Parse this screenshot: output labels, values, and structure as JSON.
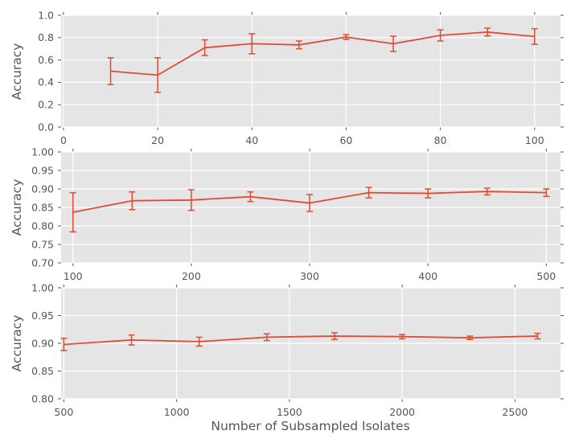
{
  "style": {
    "accent": "#E24A33",
    "plot_bg": "#E5E5E5",
    "grid_color": "#FFFFFF",
    "text_color": "#555555",
    "tick_color": "#555555",
    "fig_bg": "#FFFFFF"
  },
  "chart_data": [
    {
      "type": "line",
      "title": "",
      "ylabel": "Accuracy",
      "xlabel": "",
      "grid": true,
      "legend": "none",
      "xlim": [
        -0.5,
        105.5
      ],
      "ylim": [
        0.0,
        1.0
      ],
      "xticks": [
        0,
        20,
        40,
        60,
        80,
        100
      ],
      "xtick_labels": [
        "0",
        "20",
        "40",
        "60",
        "80",
        "100"
      ],
      "yticks": [
        0.0,
        0.2,
        0.4,
        0.6,
        0.8,
        1.0
      ],
      "ytick_labels": [
        "0.0",
        "0.2",
        "0.4",
        "0.6",
        "0.8",
        "1.0"
      ],
      "series": [
        {
          "name": "accuracy-vs-isolates-10-100",
          "x": [
            10,
            20,
            30,
            40,
            50,
            60,
            70,
            80,
            90,
            100
          ],
          "y": [
            0.5,
            0.465,
            0.71,
            0.745,
            0.735,
            0.805,
            0.745,
            0.82,
            0.85,
            0.81
          ],
          "yerr": [
            0.12,
            0.155,
            0.07,
            0.09,
            0.035,
            0.022,
            0.068,
            0.05,
            0.035,
            0.07
          ]
        }
      ]
    },
    {
      "type": "line",
      "title": "",
      "ylabel": "Accuracy",
      "xlabel": "",
      "grid": true,
      "legend": "none",
      "xlim": [
        90,
        512
      ],
      "ylim": [
        0.7,
        1.0
      ],
      "xticks": [
        100,
        200,
        300,
        400,
        500
      ],
      "xtick_labels": [
        "100",
        "200",
        "300",
        "400",
        "500"
      ],
      "yticks": [
        0.7,
        0.75,
        0.8,
        0.85,
        0.9,
        0.95,
        1.0
      ],
      "ytick_labels": [
        "0.70",
        "0.75",
        "0.80",
        "0.85",
        "0.90",
        "0.95",
        "1.00"
      ],
      "series": [
        {
          "name": "accuracy-vs-isolates-100-500",
          "x": [
            100,
            150,
            200,
            250,
            300,
            350,
            400,
            450,
            500
          ],
          "y": [
            0.837,
            0.868,
            0.87,
            0.879,
            0.862,
            0.89,
            0.888,
            0.893,
            0.89
          ],
          "yerr": [
            0.053,
            0.024,
            0.028,
            0.013,
            0.023,
            0.014,
            0.012,
            0.009,
            0.01
          ]
        }
      ]
    },
    {
      "type": "line",
      "title": "",
      "ylabel": "Accuracy",
      "xlabel": "Number of Subsampled Isolates",
      "grid": true,
      "legend": "none",
      "xlim": [
        488,
        2702
      ],
      "ylim": [
        0.8,
        1.0
      ],
      "xticks": [
        500,
        1000,
        1500,
        2000,
        2500
      ],
      "xtick_labels": [
        "500",
        "1000",
        "1500",
        "2000",
        "2500"
      ],
      "yticks": [
        0.8,
        0.85,
        0.9,
        0.95,
        1.0
      ],
      "ytick_labels": [
        "0.80",
        "0.85",
        "0.90",
        "0.95",
        "1.00"
      ],
      "series": [
        {
          "name": "accuracy-vs-isolates-500-2600",
          "x": [
            500,
            800,
            1100,
            1400,
            1700,
            2000,
            2300,
            2600
          ],
          "y": [
            0.898,
            0.906,
            0.903,
            0.911,
            0.913,
            0.912,
            0.91,
            0.913
          ],
          "yerr": [
            0.011,
            0.009,
            0.008,
            0.006,
            0.006,
            0.004,
            0.003,
            0.005
          ]
        }
      ]
    }
  ]
}
